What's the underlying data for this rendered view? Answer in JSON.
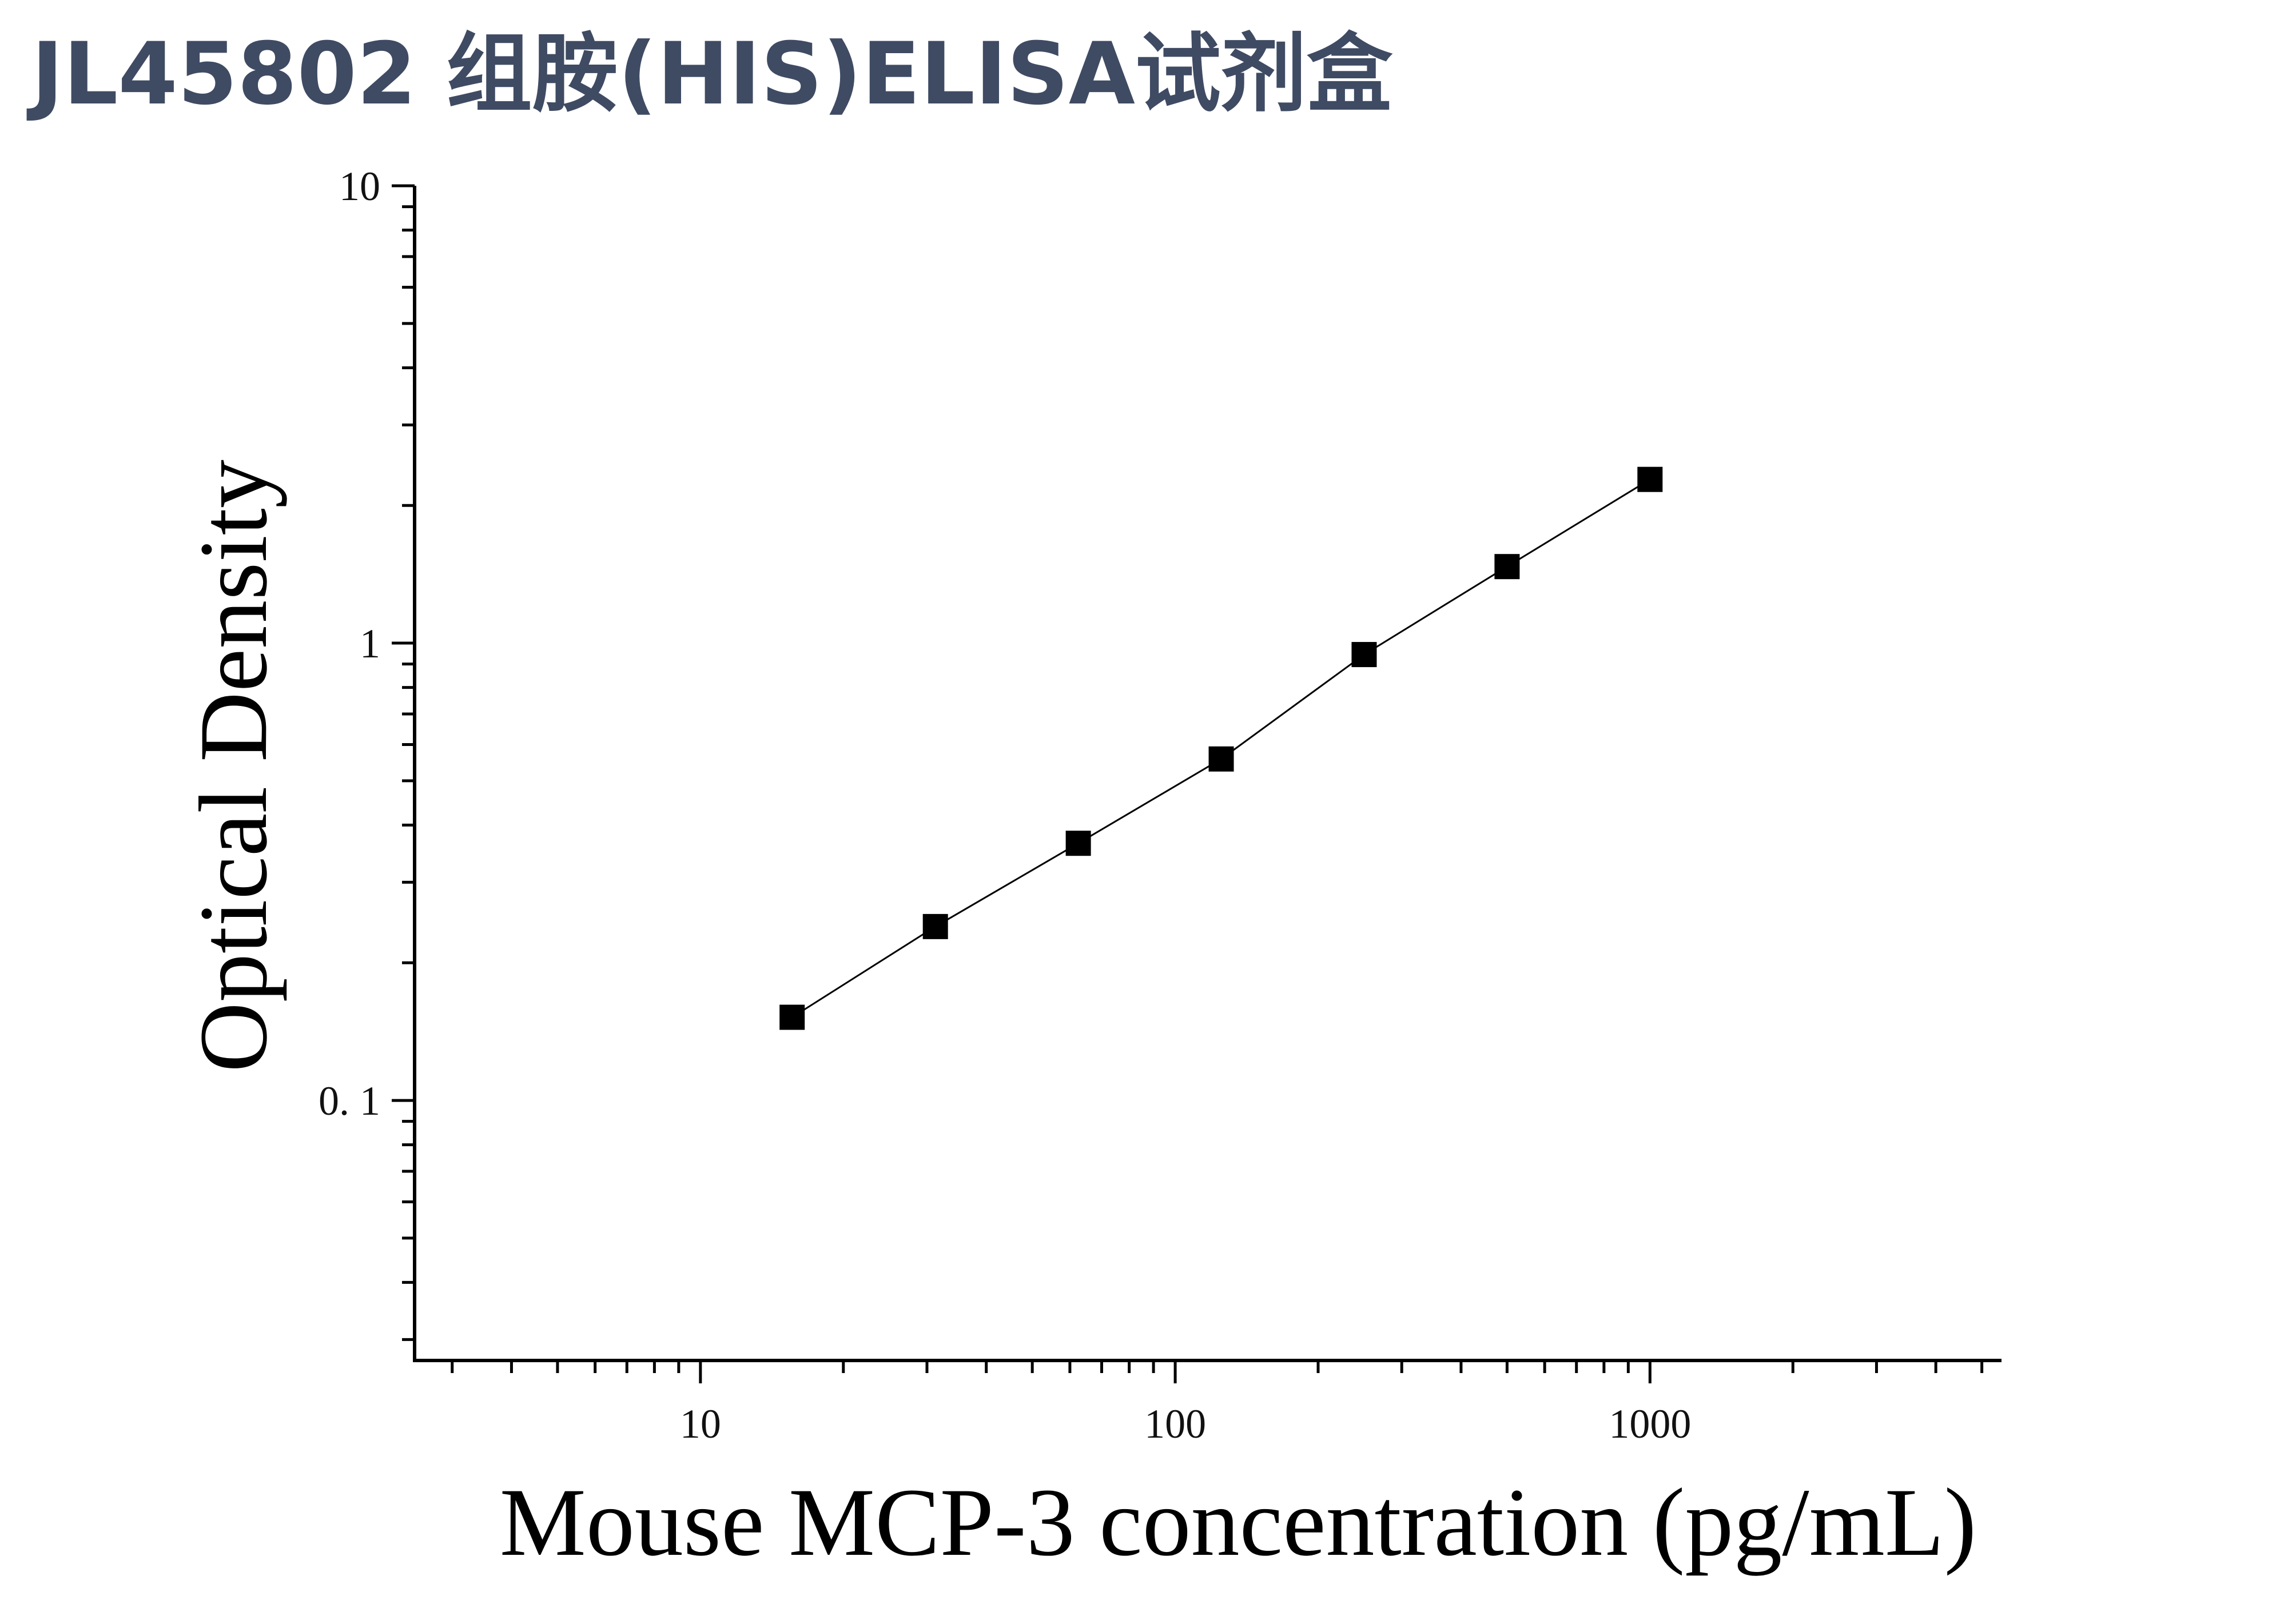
{
  "title": "JL45802 组胺(HIS)ELISA试剂盒",
  "chart_data": {
    "type": "scatter",
    "xlabel": "Mouse MCP-3 concentration (pg/mL)",
    "ylabel": "Optical Density",
    "x_scale": "log",
    "y_scale": "log",
    "xlim": [
      2.5,
      5500
    ],
    "ylim": [
      0.027,
      10
    ],
    "x_ticks": [
      10,
      100,
      1000
    ],
    "x_tick_labels": [
      "10",
      "100",
      "1000"
    ],
    "y_ticks": [
      0.1,
      1,
      10
    ],
    "y_tick_labels": [
      "0. 1",
      "1",
      "10"
    ],
    "grid": false,
    "legend": "none",
    "marker": "square",
    "fit_line": true,
    "colors": {
      "marker": "#000000",
      "axis": "#000000",
      "title": "#3f4b63"
    },
    "series": [
      {
        "x": [
          15.6,
          31.25,
          62.5,
          125,
          250,
          500,
          1000
        ],
        "y": [
          0.152,
          0.24,
          0.365,
          0.558,
          0.944,
          1.47,
          2.28
        ]
      }
    ]
  }
}
